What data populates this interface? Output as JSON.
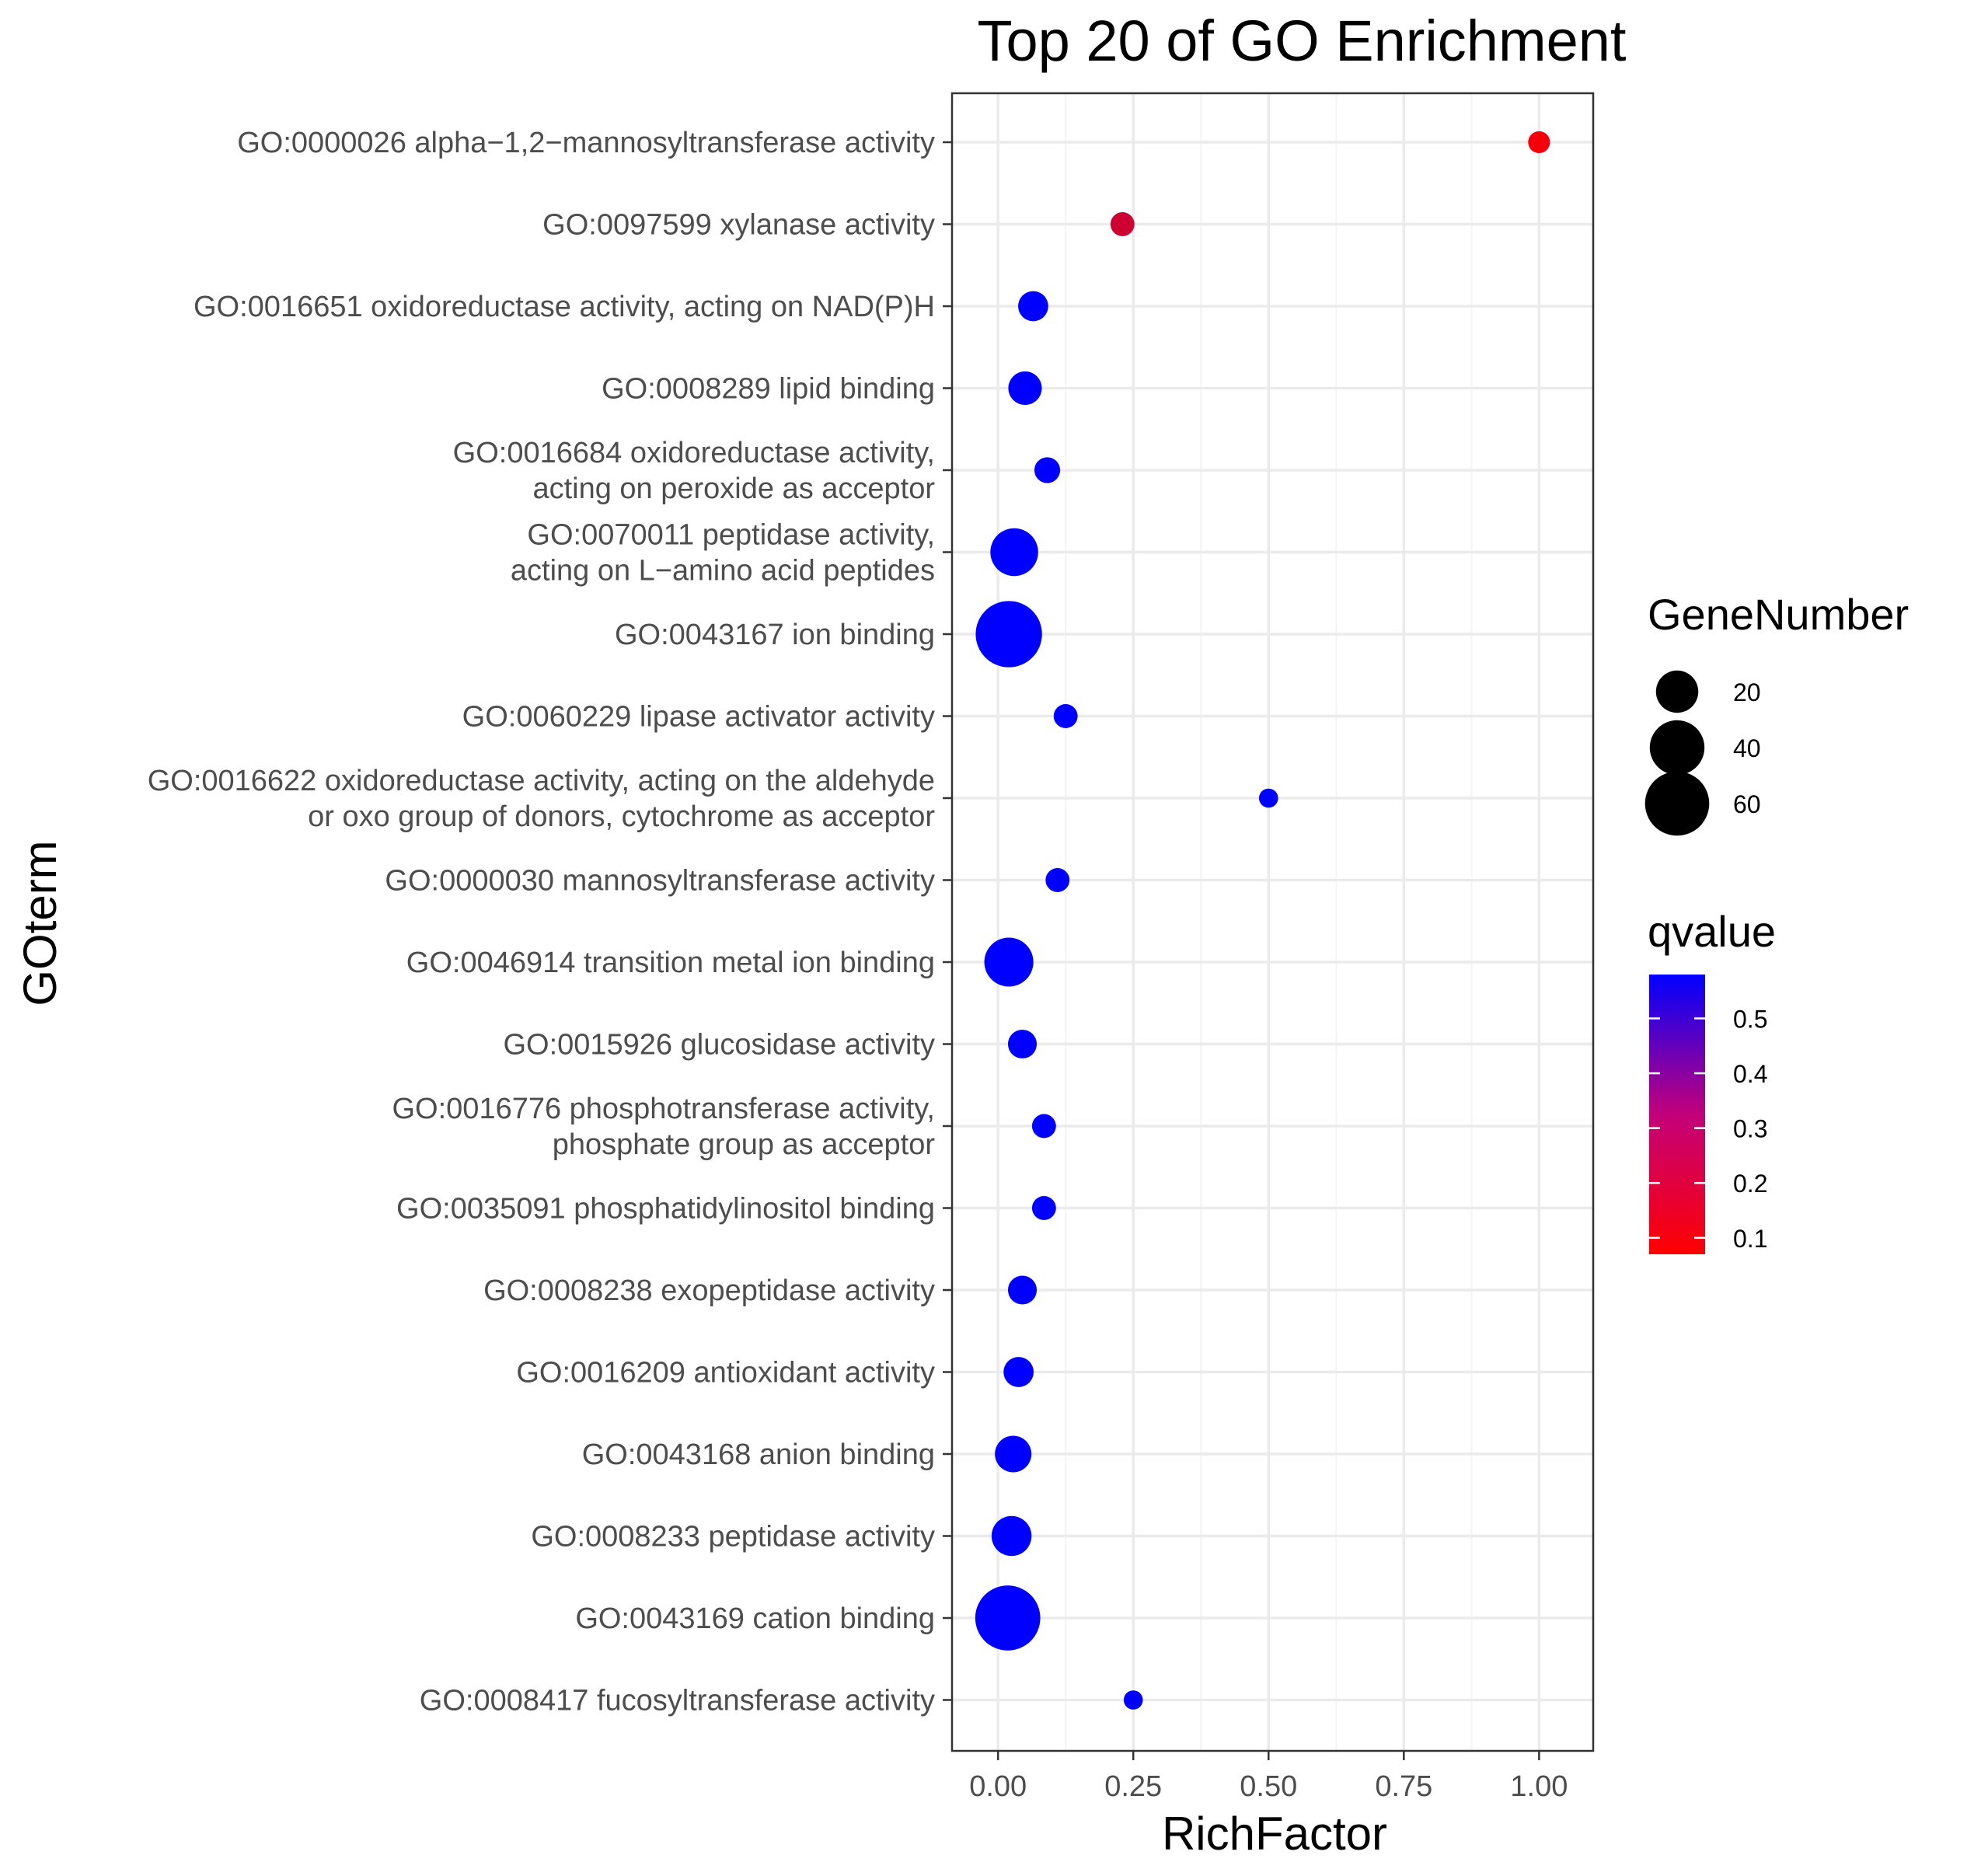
{
  "chart_data": {
    "type": "scatter",
    "title": "Top 20 of GO Enrichment",
    "xlabel": "RichFactor",
    "ylabel": "GOterm",
    "xlim": [
      -0.085,
      1.1
    ],
    "x_ticks": [
      0,
      0.25,
      0.5,
      0.75,
      1.0
    ],
    "x_tick_labels": [
      "0.00",
      "0.25",
      "0.50",
      "0.75",
      "1.00"
    ],
    "grid": true,
    "legend_position": "right",
    "size_legend": {
      "title": "GeneNumber",
      "entries": [
        {
          "label": "20",
          "value": 20
        },
        {
          "label": "40",
          "value": 40
        },
        {
          "label": "60",
          "value": 60
        }
      ]
    },
    "color_legend": {
      "title": "qvalue",
      "min": 0.07,
      "max": 0.58,
      "low_color": "#ff0000",
      "high_color": "#0000ff",
      "ticks": [
        {
          "label": "0.1",
          "value": 0.1
        },
        {
          "label": "0.2",
          "value": 0.2
        },
        {
          "label": "0.3",
          "value": 0.3
        },
        {
          "label": "0.4",
          "value": 0.4
        },
        {
          "label": "0.5",
          "value": 0.5
        }
      ]
    },
    "points": [
      {
        "label": [
          "GO:0000026 alpha−1,2−mannosyltransferase activity"
        ],
        "x": 1.0,
        "gene_number": 2,
        "qvalue": 0.09
      },
      {
        "label": [
          "GO:0097599 xylanase activity"
        ],
        "x": 0.23,
        "gene_number": 3,
        "qvalue": 0.17
      },
      {
        "label": [
          "GO:0016651 oxidoreductase activity, acting on NAD(P)H"
        ],
        "x": 0.065,
        "gene_number": 7,
        "qvalue": 0.58
      },
      {
        "label": [
          "GO:0008289 lipid binding"
        ],
        "x": 0.05,
        "gene_number": 10,
        "qvalue": 0.58
      },
      {
        "label": [
          "GO:0016684 oxidoreductase activity,",
          "acting on peroxide as acceptor"
        ],
        "x": 0.091,
        "gene_number": 4,
        "qvalue": 0.58
      },
      {
        "label": [
          "GO:0070011 peptidase activity,",
          "acting on L−amino acid peptides"
        ],
        "x": 0.03,
        "gene_number": 28,
        "qvalue": 0.58
      },
      {
        "label": [
          "GO:0043167 ion binding"
        ],
        "x": 0.02,
        "gene_number": 65,
        "qvalue": 0.58
      },
      {
        "label": [
          "GO:0060229 lipase activator activity"
        ],
        "x": 0.125,
        "gene_number": 3,
        "qvalue": 0.58
      },
      {
        "label": [
          "GO:0016622 oxidoreductase activity, acting on the aldehyde",
          "or oxo group of donors, cytochrome as acceptor"
        ],
        "x": 0.5,
        "gene_number": 1,
        "qvalue": 0.58
      },
      {
        "label": [
          "GO:0000030 mannosyltransferase activity"
        ],
        "x": 0.11,
        "gene_number": 3,
        "qvalue": 0.58
      },
      {
        "label": [
          "GO:0046914 transition metal ion binding"
        ],
        "x": 0.02,
        "gene_number": 30,
        "qvalue": 0.58
      },
      {
        "label": [
          "GO:0015926 glucosidase activity"
        ],
        "x": 0.045,
        "gene_number": 6,
        "qvalue": 0.58
      },
      {
        "label": [
          "GO:0016776 phosphotransferase activity,",
          "phosphate group as acceptor"
        ],
        "x": 0.085,
        "gene_number": 3,
        "qvalue": 0.58
      },
      {
        "label": [
          "GO:0035091 phosphatidylinositol binding"
        ],
        "x": 0.085,
        "gene_number": 3,
        "qvalue": 0.58
      },
      {
        "label": [
          "GO:0008238 exopeptidase activity"
        ],
        "x": 0.045,
        "gene_number": 6,
        "qvalue": 0.58
      },
      {
        "label": [
          "GO:0016209 antioxidant activity"
        ],
        "x": 0.038,
        "gene_number": 7,
        "qvalue": 0.58
      },
      {
        "label": [
          "GO:0043168 anion binding"
        ],
        "x": 0.028,
        "gene_number": 13,
        "qvalue": 0.58
      },
      {
        "label": [
          "GO:0008233 peptidase activity"
        ],
        "x": 0.025,
        "gene_number": 17,
        "qvalue": 0.58
      },
      {
        "label": [
          "GO:0043169 cation binding"
        ],
        "x": 0.018,
        "gene_number": 62,
        "qvalue": 0.58
      },
      {
        "label": [
          "GO:0008417 fucosyltransferase activity"
        ],
        "x": 0.25,
        "gene_number": 1,
        "qvalue": 0.58
      }
    ]
  }
}
